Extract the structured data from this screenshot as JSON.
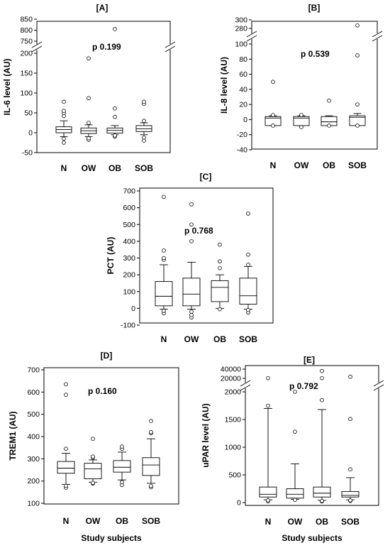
{
  "chart_data": [
    {
      "type": "box",
      "panel_label": "[A]",
      "ylabel": "IL-6 level (AU)",
      "pvalue": "p 0.199",
      "xlabel": "",
      "categories": [
        "N",
        "OW",
        "OB",
        "SOB"
      ],
      "broken_axis": true,
      "y_ticks": [
        -50,
        0,
        50,
        100,
        150,
        200,
        750,
        800,
        850
      ],
      "boxes": [
        {
          "q1": 0,
          "median": 8,
          "q3": 15,
          "whisker_low": -10,
          "whisker_high": 30,
          "outliers": [
            -25,
            -15,
            42,
            50,
            55,
            78
          ]
        },
        {
          "q1": -2,
          "median": 5,
          "q3": 12,
          "whisker_low": -10,
          "whisker_high": 20,
          "outliers": [
            -18,
            -14,
            25,
            87,
            187
          ]
        },
        {
          "q1": -1,
          "median": 6,
          "q3": 12,
          "whisker_low": -5,
          "whisker_high": 18,
          "outliers": [
            -10,
            -7,
            40,
            61,
            805
          ]
        },
        {
          "q1": 3,
          "median": 10,
          "q3": 18,
          "whisker_low": -5,
          "whisker_high": 25,
          "outliers": [
            -20,
            -12,
            30,
            73,
            78
          ]
        }
      ]
    },
    {
      "type": "box",
      "panel_label": "[B]",
      "ylabel": "IL-8 level (AU)",
      "pvalue": "p 0.539",
      "xlabel": "",
      "categories": [
        "N",
        "OW",
        "OB",
        "SOB"
      ],
      "broken_axis": true,
      "y_ticks": [
        -40,
        -20,
        0,
        20,
        40,
        60,
        80,
        100,
        280,
        300
      ],
      "boxes": [
        {
          "q1": -8,
          "median": 2,
          "q3": 4,
          "whisker_low": -8,
          "whisker_high": 5,
          "outliers": [
            -8,
            6,
            50
          ]
        },
        {
          "q1": -8,
          "median": 2,
          "q3": 4,
          "whisker_low": -8,
          "whisker_high": 5,
          "outliers": [
            -10,
            6
          ]
        },
        {
          "q1": -8,
          "median": -3,
          "q3": 4,
          "whisker_low": -8,
          "whisker_high": 5,
          "outliers": [
            -8,
            25
          ]
        },
        {
          "q1": -8,
          "median": 3,
          "q3": 5,
          "whisker_low": -8,
          "whisker_high": 8,
          "outliers": [
            -8,
            20,
            85,
            287
          ]
        }
      ]
    },
    {
      "type": "box",
      "panel_label": "[C]",
      "ylabel": "PCT (AU)",
      "pvalue": "p 0.768",
      "xlabel": "",
      "categories": [
        "N",
        "OW",
        "OB",
        "SOB"
      ],
      "broken_axis": false,
      "y_ticks": [
        -100,
        0,
        100,
        200,
        300,
        400,
        500,
        600,
        700
      ],
      "boxes": [
        {
          "q1": 15,
          "median": 72,
          "q3": 160,
          "whisker_low": -5,
          "whisker_high": 260,
          "outliers": [
            -30,
            -15,
            290,
            300,
            345,
            665
          ]
        },
        {
          "q1": 15,
          "median": 85,
          "q3": 180,
          "whisker_low": -5,
          "whisker_high": 275,
          "outliers": [
            -55,
            -40,
            -20,
            400,
            500,
            620
          ]
        },
        {
          "q1": 40,
          "median": 125,
          "q3": 165,
          "whisker_low": 0,
          "whisker_high": 200,
          "outliers": [
            -5,
            240,
            280,
            380
          ]
        },
        {
          "q1": 25,
          "median": 75,
          "q3": 180,
          "whisker_low": -5,
          "whisker_high": 250,
          "outliers": [
            -25,
            -10,
            260,
            320,
            565
          ]
        }
      ]
    },
    {
      "type": "box",
      "panel_label": "[D]",
      "ylabel": "TREM1 (AU)",
      "pvalue": "p 0.160",
      "xlabel": "Study subjects",
      "categories": [
        "N",
        "OW",
        "OB",
        "SOB"
      ],
      "broken_axis": false,
      "y_ticks": [
        100,
        200,
        300,
        400,
        500,
        600,
        700
      ],
      "boxes": [
        {
          "q1": 235,
          "median": 258,
          "q3": 288,
          "whisker_low": 185,
          "whisker_high": 325,
          "outliers": [
            170,
            178,
            345,
            588,
            635
          ]
        },
        {
          "q1": 210,
          "median": 255,
          "q3": 280,
          "whisker_low": 195,
          "whisker_high": 295,
          "outliers": [
            188,
            192,
            305,
            310,
            390
          ]
        },
        {
          "q1": 240,
          "median": 262,
          "q3": 292,
          "whisker_low": 205,
          "whisker_high": 330,
          "outliers": [
            182,
            195,
            345,
            355
          ]
        },
        {
          "q1": 225,
          "median": 272,
          "q3": 305,
          "whisker_low": 190,
          "whisker_high": 390,
          "outliers": [
            172,
            178,
            415,
            420,
            470
          ]
        }
      ]
    },
    {
      "type": "box",
      "panel_label": "[E]",
      "ylabel": "uPAR level (AU)",
      "pvalue": "p 0.792",
      "xlabel": "Study subjects",
      "categories": [
        "N",
        "OW",
        "OB",
        "SOB"
      ],
      "broken_axis": true,
      "y_ticks": [
        0,
        500,
        1000,
        1500,
        2000,
        20000,
        40000
      ],
      "boxes": [
        {
          "q1": 100,
          "median": 150,
          "q3": 280,
          "whisker_low": 50,
          "whisker_high": 1700,
          "outliers": [
            20,
            40,
            1750,
            20500
          ]
        },
        {
          "q1": 80,
          "median": 150,
          "q3": 250,
          "whisker_low": 60,
          "whisker_high": 700,
          "outliers": [
            50,
            1280,
            2100
          ]
        },
        {
          "q1": 100,
          "median": 170,
          "q3": 280,
          "whisker_low": 40,
          "whisker_high": 1680,
          "outliers": [
            20,
            30,
            1850,
            20500,
            36000
          ]
        },
        {
          "q1": 100,
          "median": 130,
          "q3": 200,
          "whisker_low": 50,
          "whisker_high": 450,
          "outliers": [
            30,
            40,
            600,
            1510,
            23500
          ]
        }
      ]
    }
  ]
}
